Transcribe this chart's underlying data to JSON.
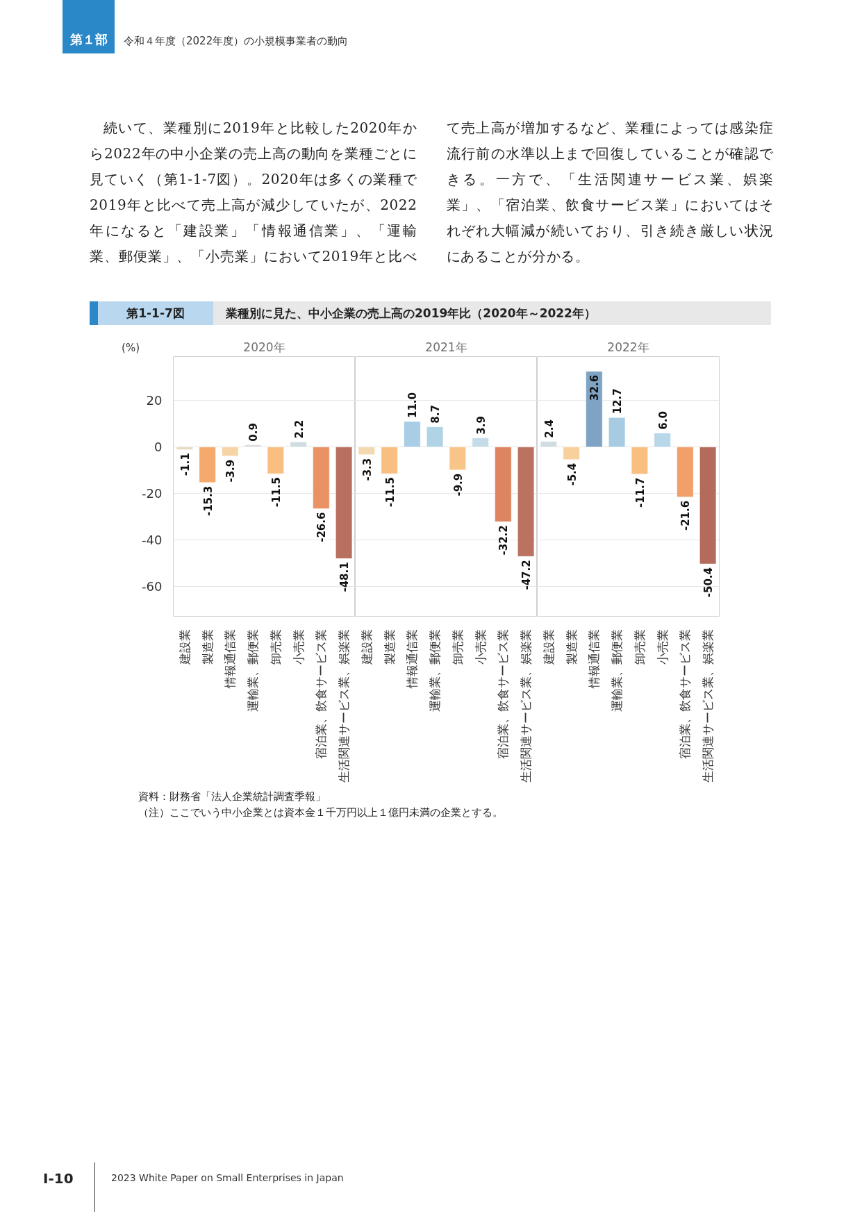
{
  "chart_data": [
    {
      "type": "bar",
      "title": "2020年",
      "ylabel": "(%)",
      "categories": [
        "建設業",
        "製造業",
        "情報通信業",
        "運輸業、郵便業",
        "卸売業",
        "小売業",
        "宿泊業、飲食サービス業",
        "生活関連サービス業、娯楽業"
      ],
      "values": [
        -1.1,
        -15.3,
        -3.9,
        0.9,
        -11.5,
        2.2,
        -26.6,
        -48.1
      ],
      "value_labels": [
        "-1.1",
        "-15.3",
        "-3.9",
        "0.9",
        "-11.5",
        "2.2",
        "-26.6",
        "-48.1"
      ],
      "colors": [
        "#e8d8c2",
        "#f6a96c",
        "#f7d4a6",
        "#dcdcdc",
        "#f9bf80",
        "#cfdde3",
        "#ea9263",
        "#b86f5f"
      ],
      "ylim": [
        -73,
        39
      ],
      "yticks": [
        -60,
        -40,
        -20,
        0,
        20
      ],
      "grid": "y",
      "annotations": [
        "第１部",
        "令和４年度（2022年度）の小規模事業者の動向",
        "続いて、業種別に2019年と比較した2020年から2022年の中小企業の売上高の動向を業種ごとに見ていく（第1-1-7図）。2020年は多くの業種で2019年と比べて売上高が減少していたが、2022年になると「建設業」「情報通信業」、「運輸業、郵便業」、「小売業」において2019年と比べて売上高が増加するなど、業種によっては感染症流行前の水準以上まで回復していることが確認できる。一方で、「生活関連サービス業、娯楽業」、「宿泊業、飲食サービス業」においてはそれぞれ大幅減が続いており、引き続き厳しい状況にあることが分かる。",
        "第1-1-7図",
        "業種別に見た、中小企業の売上高の2019年比（2020年～2022年）",
        "資料：財務省「法人企業統計調査季報」",
        "（注）ここでいう中小企業とは資本金１千万円以上１億円未満の企業とする。",
        "Ⅰ-10",
        "2023 White Paper on Small Enterprises in Japan"
      ]
    },
    {
      "type": "bar",
      "title": "2021年",
      "categories": [
        "建設業",
        "製造業",
        "情報通信業",
        "運輸業、郵便業",
        "卸売業",
        "小売業",
        "宿泊業、飲食サービス業",
        "生活関連サービス業、娯楽業"
      ],
      "values": [
        -3.3,
        -11.5,
        11.0,
        8.7,
        -9.9,
        3.9,
        -32.2,
        -47.2
      ],
      "value_labels": [
        "-3.3",
        "-11.5",
        "11.0",
        "8.7",
        "-9.9",
        "3.9",
        "-32.2",
        "-47.2"
      ],
      "colors": [
        "#f4d9b0",
        "#f9bf80",
        "#a8cde4",
        "#b1d3e6",
        "#f9c487",
        "#c4dce8",
        "#de8460",
        "#bb7260"
      ],
      "ylim": [
        -73,
        39
      ],
      "yticks": [
        -60,
        -40,
        -20,
        0,
        20
      ],
      "grid": "y",
      "tick_labels": "x"
    },
    {
      "type": "bar",
      "title": "2022年",
      "categories": [
        "建設業",
        "製造業",
        "情報通信業",
        "運輸業、郵便業",
        "卸売業",
        "小売業",
        "宿泊業、飲食サービス業",
        "生活関連サービス業、娯楽業"
      ],
      "values": [
        2.4,
        -5.4,
        32.6,
        12.7,
        -11.7,
        6.0,
        -21.6,
        -50.4
      ],
      "value_labels": [
        "2.4",
        "-5.4",
        "32.6",
        "12.7",
        "-11.7",
        "6.0",
        "-21.6",
        "-50.4"
      ],
      "colors": [
        "#cfdde3",
        "#f8d09b",
        "#7fa3c2",
        "#a6cbe3",
        "#f9bf80",
        "#b8d7e8",
        "#f1a06a",
        "#b46b5c"
      ],
      "ylim": [
        -73,
        39
      ],
      "yticks": [
        -60,
        -40,
        -20,
        0,
        20
      ],
      "grid": "y",
      "tick_labels": "x"
    }
  ]
}
